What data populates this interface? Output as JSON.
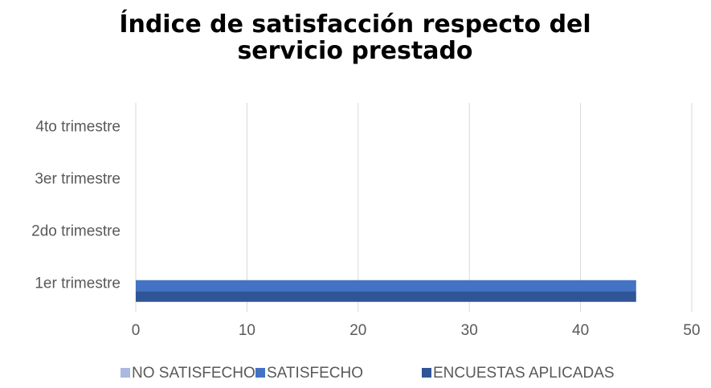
{
  "chart_data": {
    "type": "bar",
    "orientation": "horizontal",
    "title": "Índice de satisfacción respecto del servicio prestado",
    "categories": [
      "1er trimestre",
      "2do trimestre",
      "3er trimestre",
      "4to trimestre"
    ],
    "series": [
      {
        "name": "NO SATISFECHO",
        "color": "#a9b9df",
        "values": [
          0,
          null,
          null,
          null
        ]
      },
      {
        "name": "SATISFECHO",
        "color": "#4472c4",
        "values": [
          45,
          null,
          null,
          null
        ]
      },
      {
        "name": "ENCUESTAS APLICADAS",
        "color": "#2f5597",
        "values": [
          45,
          null,
          null,
          null
        ]
      }
    ],
    "xlim": [
      0,
      50
    ],
    "xticks": [
      0,
      10,
      20,
      30,
      40,
      50
    ],
    "grid": true,
    "legend": "bottom"
  }
}
